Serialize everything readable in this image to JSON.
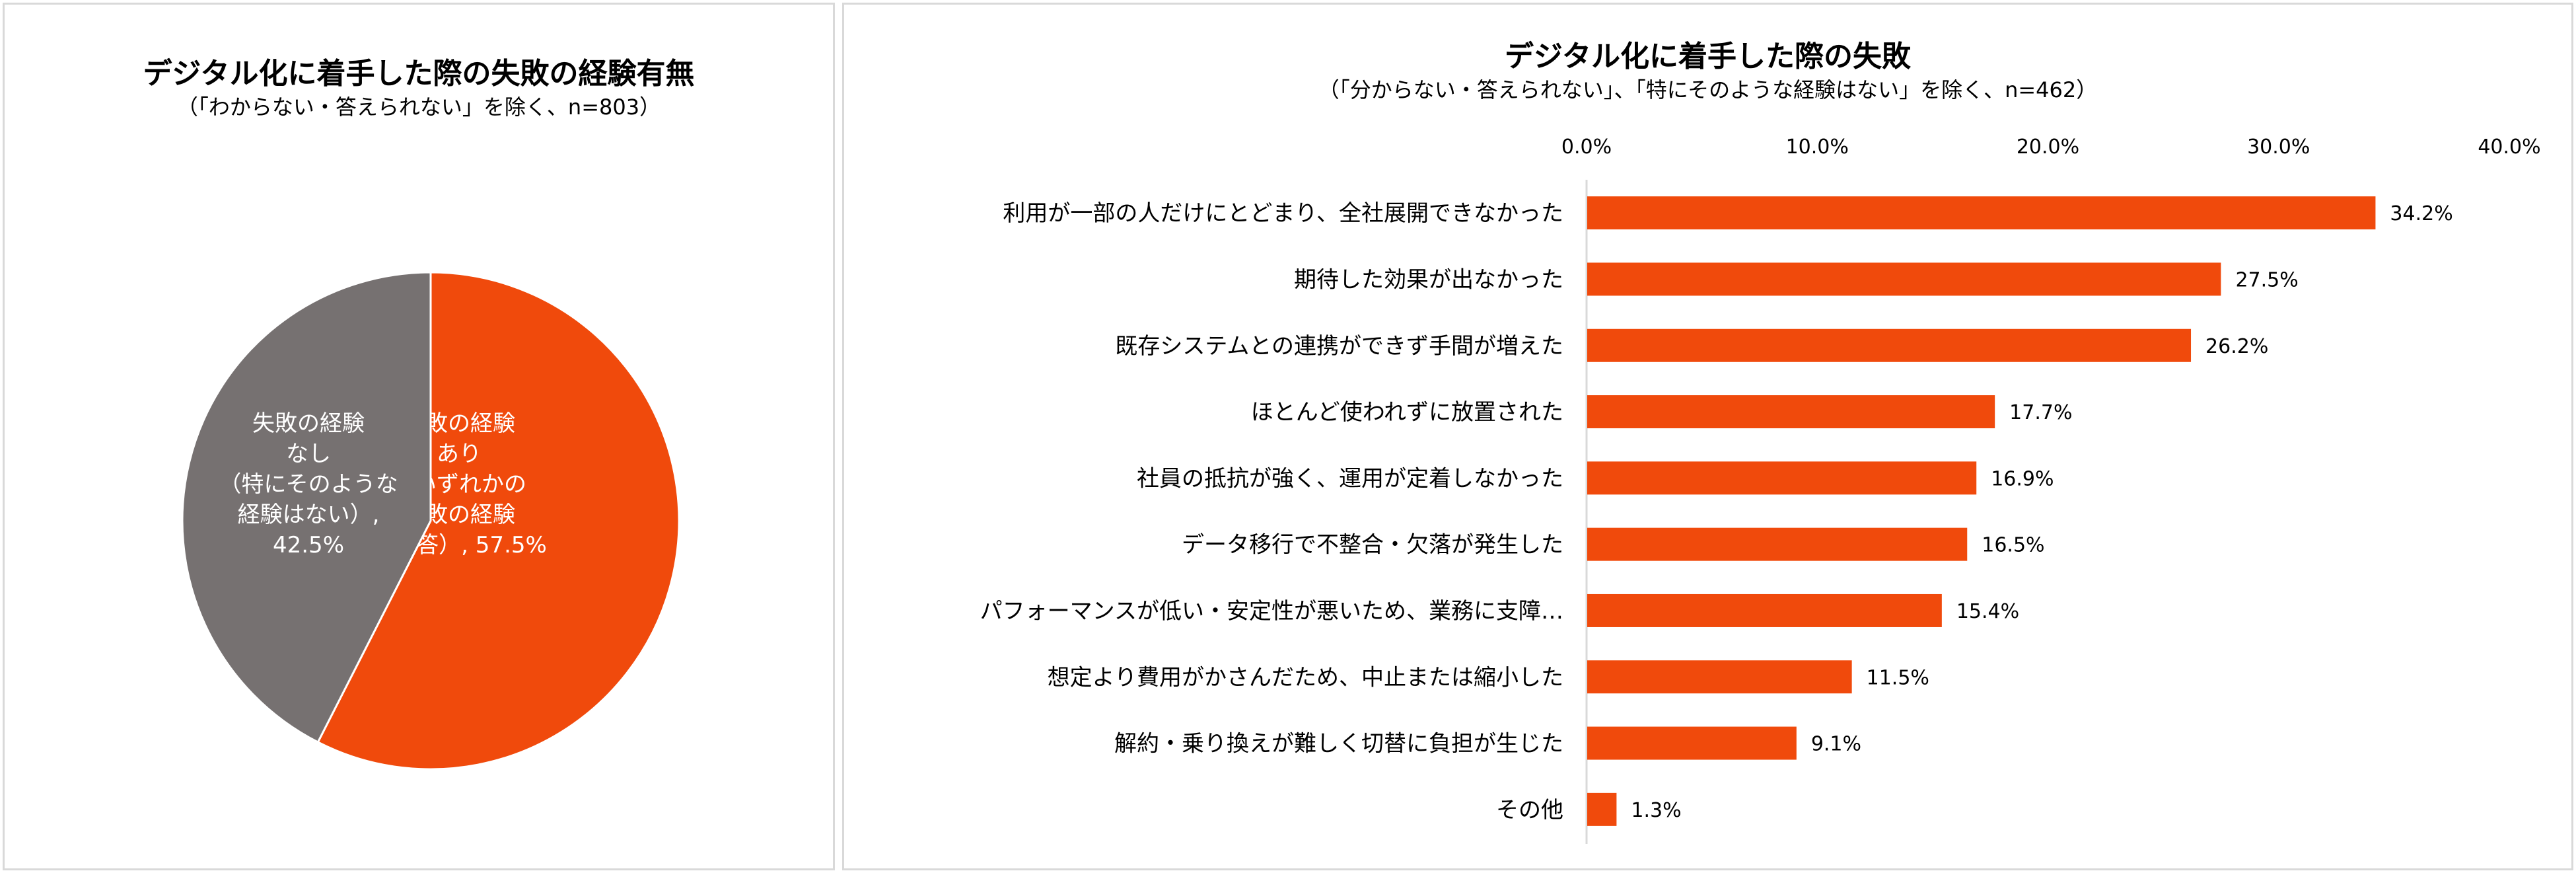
{
  "chart_data": [
    {
      "type": "pie",
      "title": "デジタル化に着手した際の失敗の経験有無",
      "subtitle": "（「わからない・答えられない」を除く、n=803）",
      "slices": [
        {
          "lines": [
            "失敗の経験",
            "あり",
            "（いずれかの",
            "失敗の経験",
            "を回答）, 57.5%"
          ],
          "value": 57.5,
          "color": "#f04a0c"
        },
        {
          "lines": [
            "失敗の経験",
            "なし",
            "（特にそのような",
            "経験はない）,",
            "42.5%"
          ],
          "value": 42.5,
          "color": "#767171"
        }
      ]
    },
    {
      "type": "bar",
      "orientation": "horizontal",
      "title": "デジタル化に着手した際の失敗",
      "subtitle": "（「分からない・答えられない」、「特にそのような経験はない」を除く、n=462）",
      "categories": [
        "利用が一部の人だけにとどまり、全社展開できなかった",
        "期待した効果が出なかった",
        "既存システムとの連携ができず手間が増えた",
        "ほとんど使われずに放置された",
        "社員の抵抗が強く、運用が定着しなかった",
        "データ移行で不整合・欠落が発生した",
        "パフォーマンスが低い・安定性が悪いため、業務に支障…",
        "想定より費用がかさんだため、中止または縮小した",
        "解約・乗り換えが難しく切替に負担が生じた",
        "その他"
      ],
      "values": [
        34.2,
        27.5,
        26.2,
        17.7,
        16.9,
        16.5,
        15.4,
        11.5,
        9.1,
        1.3
      ],
      "value_labels": [
        "34.2%",
        "27.5%",
        "26.2%",
        "17.7%",
        "16.9%",
        "16.5%",
        "15.4%",
        "11.5%",
        "9.1%",
        "1.3%"
      ],
      "xlim": [
        0,
        40
      ],
      "xticks": [
        "0.0%",
        "10.0%",
        "20.0%",
        "30.0%",
        "40.0%"
      ],
      "axis_position": "top",
      "grid": false,
      "color": "#f04a0c"
    }
  ]
}
